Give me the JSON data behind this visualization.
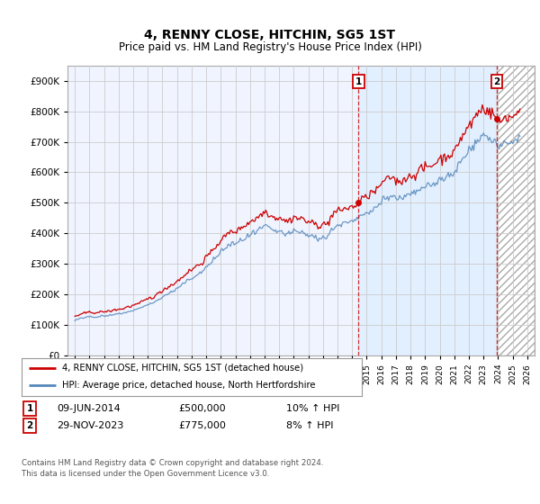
{
  "title": "4, RENNY CLOSE, HITCHIN, SG5 1ST",
  "subtitle": "Price paid vs. HM Land Registry's House Price Index (HPI)",
  "legend_line1": "4, RENNY CLOSE, HITCHIN, SG5 1ST (detached house)",
  "legend_line2": "HPI: Average price, detached house, North Hertfordshire",
  "annotation1": {
    "num": "1",
    "date": "09-JUN-2014",
    "price": "£500,000",
    "hpi": "10% ↑ HPI",
    "year": 2014.44
  },
  "annotation2": {
    "num": "2",
    "date": "29-NOV-2023",
    "price": "£775,000",
    "hpi": "8% ↑ HPI",
    "year": 2023.91
  },
  "footnote1": "Contains HM Land Registry data © Crown copyright and database right 2024.",
  "footnote2": "This data is licensed under the Open Government Licence v3.0.",
  "red_color": "#cc0000",
  "blue_color": "#5588bb",
  "shade_color": "#ddeeff",
  "grid_color": "#cccccc",
  "bg_color": "#ffffff",
  "plot_bg_color": "#f0f4ff",
  "ylim": [
    0,
    950000
  ],
  "yticks": [
    0,
    100000,
    200000,
    300000,
    400000,
    500000,
    600000,
    700000,
    800000,
    900000
  ],
  "xlim_min": 1994.5,
  "xlim_max": 2026.5,
  "xlabel_years": [
    1995,
    1996,
    1997,
    1998,
    1999,
    2000,
    2001,
    2002,
    2003,
    2004,
    2005,
    2006,
    2007,
    2008,
    2009,
    2010,
    2011,
    2012,
    2013,
    2014,
    2015,
    2016,
    2017,
    2018,
    2019,
    2020,
    2021,
    2022,
    2023,
    2024,
    2025,
    2026
  ],
  "ann1_dot_y": 500000,
  "ann2_dot_y": 775000,
  "sale1_year": 2014.44,
  "sale2_year": 2023.91
}
